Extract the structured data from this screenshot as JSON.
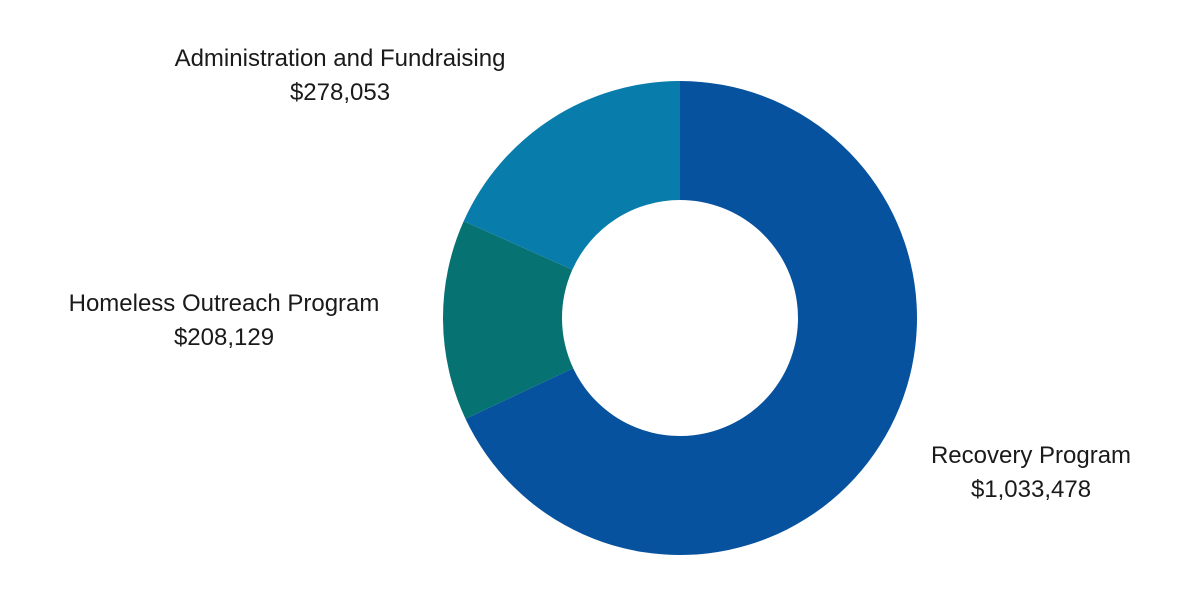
{
  "chart_data": {
    "type": "pie",
    "donut": true,
    "title": "",
    "total": 1519660,
    "slices": [
      {
        "label": "Recovery Program",
        "value": 1033478,
        "value_label": "$1,033,478",
        "color": "#06529E"
      },
      {
        "label": "Homeless Outreach Program",
        "value": 208129,
        "value_label": "$208,129",
        "color": "#077272"
      },
      {
        "label": "Administration and Fundraising",
        "value": 278053,
        "value_label": "$278,053",
        "color": "#087DAC"
      }
    ],
    "start": "12 o'clock",
    "direction": "clockwise",
    "legend": "none (labels placed next to slices)"
  }
}
